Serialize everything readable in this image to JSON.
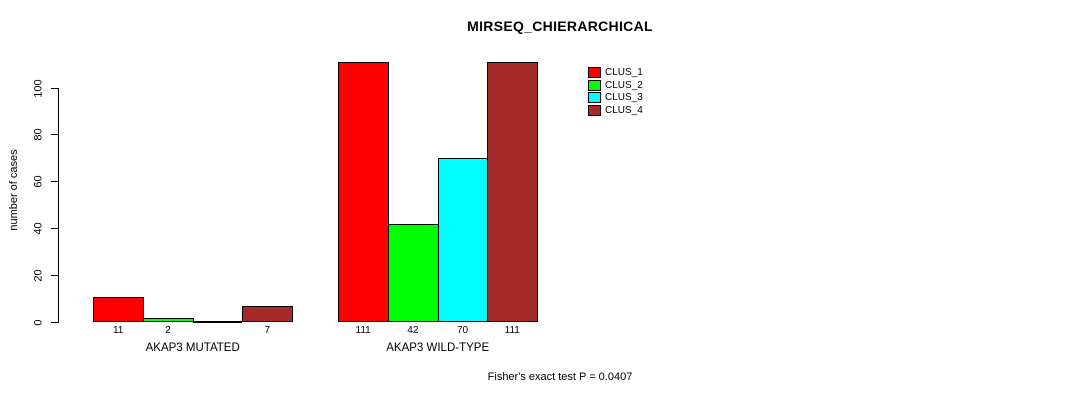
{
  "title": "MIRSEQ_CHIERARCHICAL",
  "footer": "Fisher's exact test P = 0.0407",
  "colors": {
    "background": "#ffffff",
    "axis": "#000000",
    "clus_1": "#FF0000",
    "clus_2": "#00FF00",
    "clus_3": "#00FFFF",
    "clus_4": "#A52A2A"
  },
  "chart_data": {
    "type": "bar",
    "title": "MIRSEQ_CHIERARCHICAL",
    "xlabel": "",
    "ylabel": "number of cases",
    "ylim": [
      0,
      100
    ],
    "yticks": [
      0,
      20,
      40,
      60,
      80,
      100
    ],
    "grid": false,
    "legend_position": "top-right",
    "series_names": [
      "CLUS_1",
      "CLUS_2",
      "CLUS_3",
      "CLUS_4"
    ],
    "series_colors": [
      "#FF0000",
      "#00FF00",
      "#00FFFF",
      "#A52A2A"
    ],
    "groups": [
      {
        "label": "AKAP3 MUTATED",
        "values": [
          11,
          2,
          0,
          7
        ],
        "bar_labels": [
          "11",
          "2",
          "",
          "7"
        ]
      },
      {
        "label": "AKAP3 WILD-TYPE",
        "values": [
          111,
          42,
          70,
          111
        ],
        "bar_labels": [
          "111",
          "42",
          "70",
          "111"
        ]
      }
    ],
    "annotation": "Fisher's exact test P = 0.0407",
    "note": "bars for value 111 extend above the y-axis maximum of 100; zero-value bar drawn as flat line with no label"
  }
}
